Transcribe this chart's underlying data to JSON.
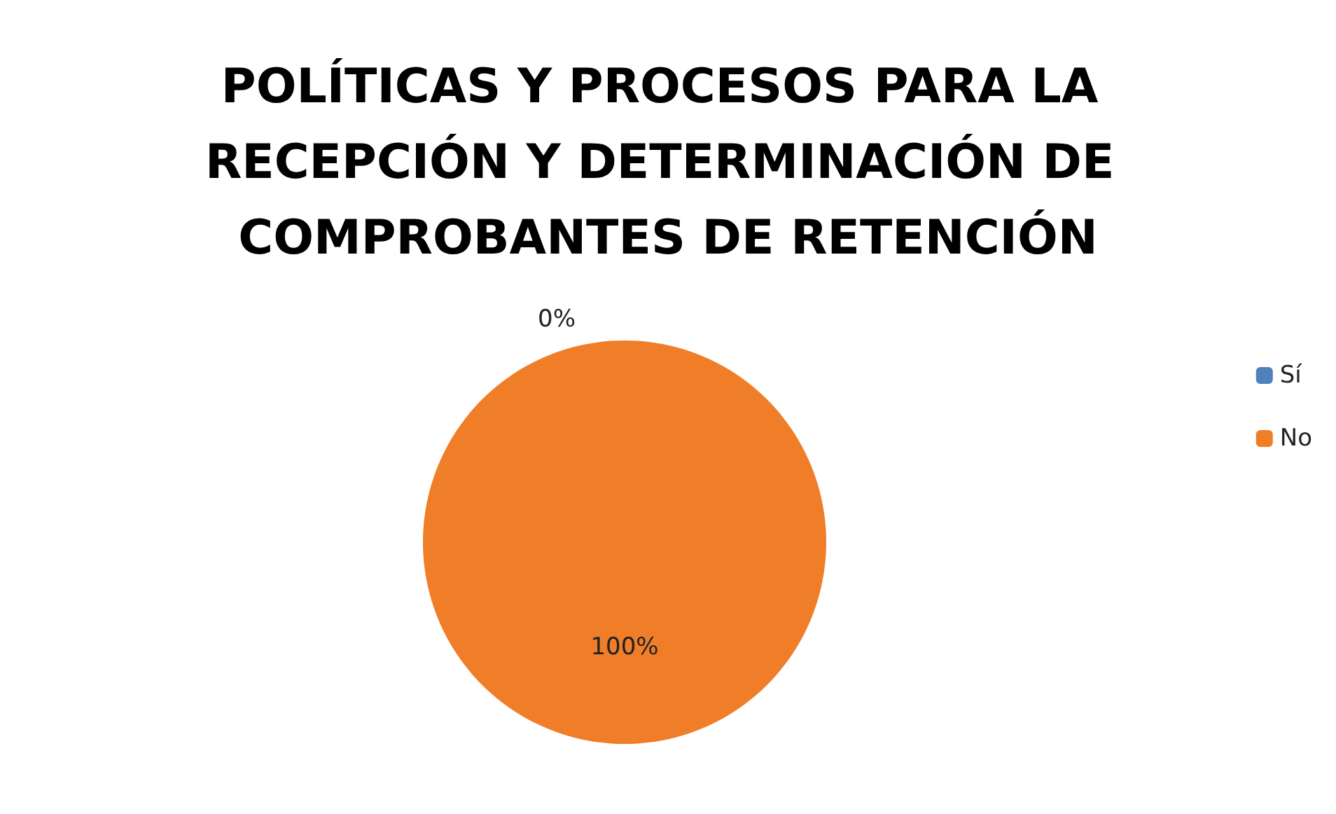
{
  "chart_data": {
    "type": "pie",
    "title": "POLÍTICAS Y PROCESOS PARA LA RECEPCIÓN Y DETERMINACIÓN DE COMPROBANTES DE RETENCIÓN",
    "categories": [
      "Sí",
      "No"
    ],
    "values": [
      0,
      100
    ],
    "colors": [
      "#4f81bd",
      "#f07e29"
    ],
    "value_labels": [
      "0%",
      "100%"
    ],
    "legend": "right"
  }
}
